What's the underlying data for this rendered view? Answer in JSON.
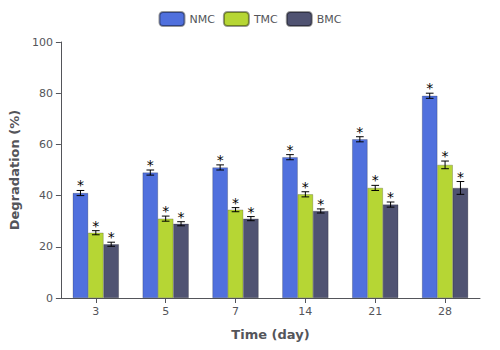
{
  "chart_data": {
    "type": "bar",
    "xlabel": "Time (day)",
    "ylabel": "Degradation (%)",
    "categories": [
      "3",
      "5",
      "7",
      "14",
      "21",
      "28"
    ],
    "series": [
      {
        "name": "NMC",
        "values": [
          41,
          49,
          51,
          55,
          62,
          79
        ],
        "errors": [
          1.0,
          1.0,
          1.0,
          1.0,
          1.0,
          1.0
        ],
        "annotations": [
          "*",
          "*",
          "*",
          "*",
          "*",
          "*"
        ]
      },
      {
        "name": "TMC",
        "values": [
          25.5,
          31,
          34.5,
          40.5,
          43,
          52
        ],
        "errors": [
          0.8,
          1.0,
          0.8,
          1.0,
          1.0,
          1.5
        ],
        "annotations": [
          "*",
          "*",
          "*",
          "*",
          "*",
          "*"
        ]
      },
      {
        "name": "BMC",
        "values": [
          21,
          29,
          31,
          34,
          36.5,
          43
        ],
        "errors": [
          0.8,
          0.8,
          0.8,
          0.8,
          1.0,
          2.5
        ],
        "annotations": [
          "*",
          "*",
          "*",
          "*",
          "*",
          "*"
        ]
      }
    ],
    "ylim": [
      0,
      100
    ],
    "yticks": [
      0,
      20,
      40,
      60,
      80,
      100
    ],
    "grid": false,
    "legend": "top"
  }
}
